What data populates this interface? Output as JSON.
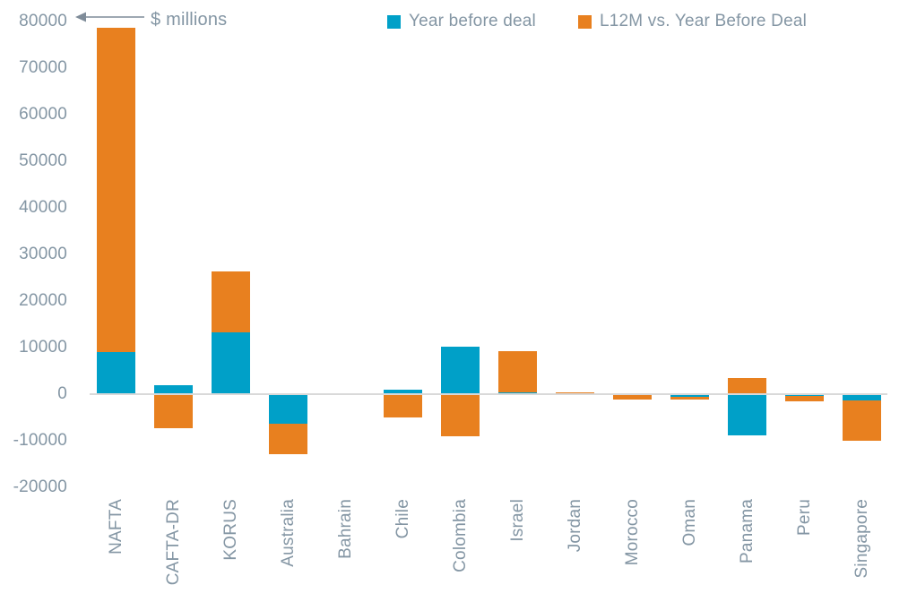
{
  "chart": {
    "unit_label": "$ millions",
    "colors": {
      "blue": "#00A0C8",
      "orange": "#E8801F",
      "axis_text": "#8496A4",
      "zero_line": "#D9D9D9",
      "arrow": "#7F8C99"
    },
    "legend": [
      {
        "label": "Year before deal"
      },
      {
        "label": "L12M vs. Year Before Deal"
      }
    ]
  },
  "chart_data": {
    "type": "bar",
    "stacked": true,
    "title": "",
    "ylabel": "$ millions",
    "xlabel": "",
    "ylim": [
      -20000,
      80000
    ],
    "y_ticks": [
      80000,
      70000,
      60000,
      50000,
      40000,
      30000,
      20000,
      10000,
      0,
      -10000,
      -20000
    ],
    "grid": false,
    "legend_position": "top",
    "categories": [
      "NAFTA",
      "CAFTA-DR",
      "KORUS",
      "Australia",
      "Bahrain",
      "Chile",
      "Colombia",
      "Israel",
      "Jordan",
      "Morocco",
      "Oman",
      "Panama",
      "Peru",
      "Singapore"
    ],
    "series": [
      {
        "name": "Year before deal",
        "color": "#00A0C8",
        "values": [
          9100,
          1900,
          13200,
          -6400,
          0,
          1000,
          10100,
          400,
          0,
          0,
          -600,
          -8900,
          -400,
          -1400
        ]
      },
      {
        "name": "L12M vs. Year Before Deal",
        "color": "#E8801F",
        "values": [
          69600,
          -7400,
          13100,
          -6400,
          0,
          -5000,
          -9000,
          8900,
          400,
          -1100,
          -600,
          3500,
          -1100,
          -8600
        ]
      }
    ]
  }
}
